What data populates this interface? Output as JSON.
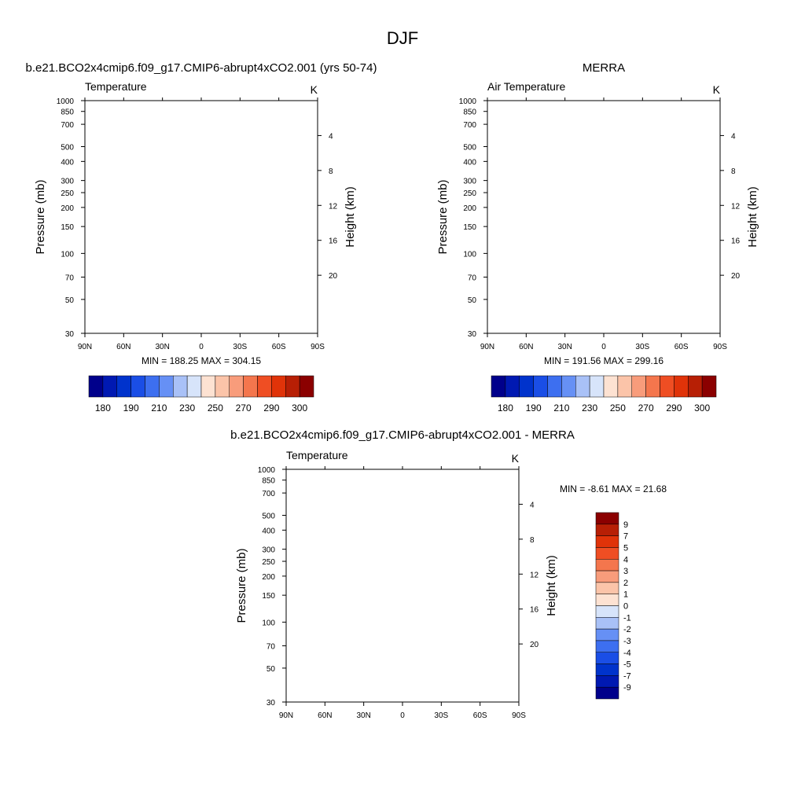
{
  "figure": {
    "title": "DJF",
    "pressure_label": "Pressure (mb)",
    "height_label": "Height (km)",
    "pressure_ticks": [
      "30",
      "50",
      "70",
      "100",
      "150",
      "200",
      "250",
      "300",
      "400",
      "500",
      "700",
      "850",
      "1000"
    ],
    "height_ticks": [
      "4",
      "8",
      "12",
      "16",
      "20"
    ],
    "lat_ticks": [
      "90N",
      "60N",
      "30N",
      "0",
      "30S",
      "60S",
      "90S"
    ]
  },
  "chart_data": [
    {
      "type": "heatmap",
      "title": "b.e21.BCO2x4cmip6.f09_g17.CMIP6-abrupt4xCO2.001 (yrs 50-74)",
      "left_label": "Temperature",
      "units": "K",
      "stats": "MIN = 188.25  MAX = 304.15",
      "min": 188.25,
      "max": 304.15,
      "x_range": [
        90,
        -90
      ],
      "y_range_mb": [
        1000,
        30
      ],
      "data_top_mb": 30,
      "colorbar": {
        "orientation": "horizontal",
        "labels": [
          "180",
          "190",
          "210",
          "230",
          "250",
          "270",
          "290",
          "300"
        ],
        "levels": [
          180,
          185,
          190,
          200,
          210,
          220,
          230,
          240,
          250,
          260,
          270,
          280,
          290,
          295,
          300
        ]
      }
    },
    {
      "type": "heatmap",
      "title": "MERRA",
      "left_label": "Air Temperature",
      "units": "K",
      "stats": "MIN = 191.56  MAX = 299.16",
      "min": 191.56,
      "max": 299.16,
      "x_range": [
        90,
        -90
      ],
      "y_range_mb": [
        1000,
        30
      ],
      "data_top_mb": 100,
      "colorbar": {
        "orientation": "horizontal",
        "labels": [
          "180",
          "190",
          "210",
          "230",
          "250",
          "270",
          "290",
          "300"
        ],
        "levels": [
          180,
          185,
          190,
          200,
          210,
          220,
          230,
          240,
          250,
          260,
          270,
          280,
          290,
          295,
          300
        ]
      }
    },
    {
      "type": "heatmap",
      "title": "b.e21.BCO2x4cmip6.f09_g17.CMIP6-abrupt4xCO2.001 - MERRA",
      "left_label": "Temperature",
      "units": "K",
      "stats": "MIN =  -8.61  MAX =  21.68",
      "min": -8.61,
      "max": 21.68,
      "x_range": [
        90,
        -90
      ],
      "y_range_mb": [
        1000,
        30
      ],
      "data_top_mb": 100,
      "colorbar": {
        "orientation": "vertical",
        "labels": [
          "9",
          "7",
          "5",
          "4",
          "3",
          "2",
          "1",
          "0",
          "-1",
          "-2",
          "-3",
          "-4",
          "-5",
          "-7",
          "-9"
        ],
        "levels": [
          -9,
          -7,
          -5,
          -4,
          -3,
          -2,
          -1,
          0,
          1,
          2,
          3,
          4,
          5,
          7,
          9
        ]
      }
    }
  ],
  "palette": [
    "#00008b",
    "#0019b2",
    "#0033cc",
    "#1a4ee6",
    "#3d6ff0",
    "#6690f5",
    "#a9c1f7",
    "#d7e4fa",
    "#fde2d2",
    "#fbc4a9",
    "#f89c7b",
    "#f4764d",
    "#ef4e23",
    "#e03309",
    "#b71f05",
    "#8b0000"
  ],
  "diff_palette": [
    "#00008b",
    "#0019b2",
    "#0033cc",
    "#1a4ee6",
    "#3d6ff0",
    "#6690f5",
    "#a9c1f7",
    "#d7e4fa",
    "#fde2d2",
    "#fbc4a9",
    "#f89c7b",
    "#f4764d",
    "#ef4e23",
    "#e03309",
    "#b71f05",
    "#8b0000"
  ]
}
